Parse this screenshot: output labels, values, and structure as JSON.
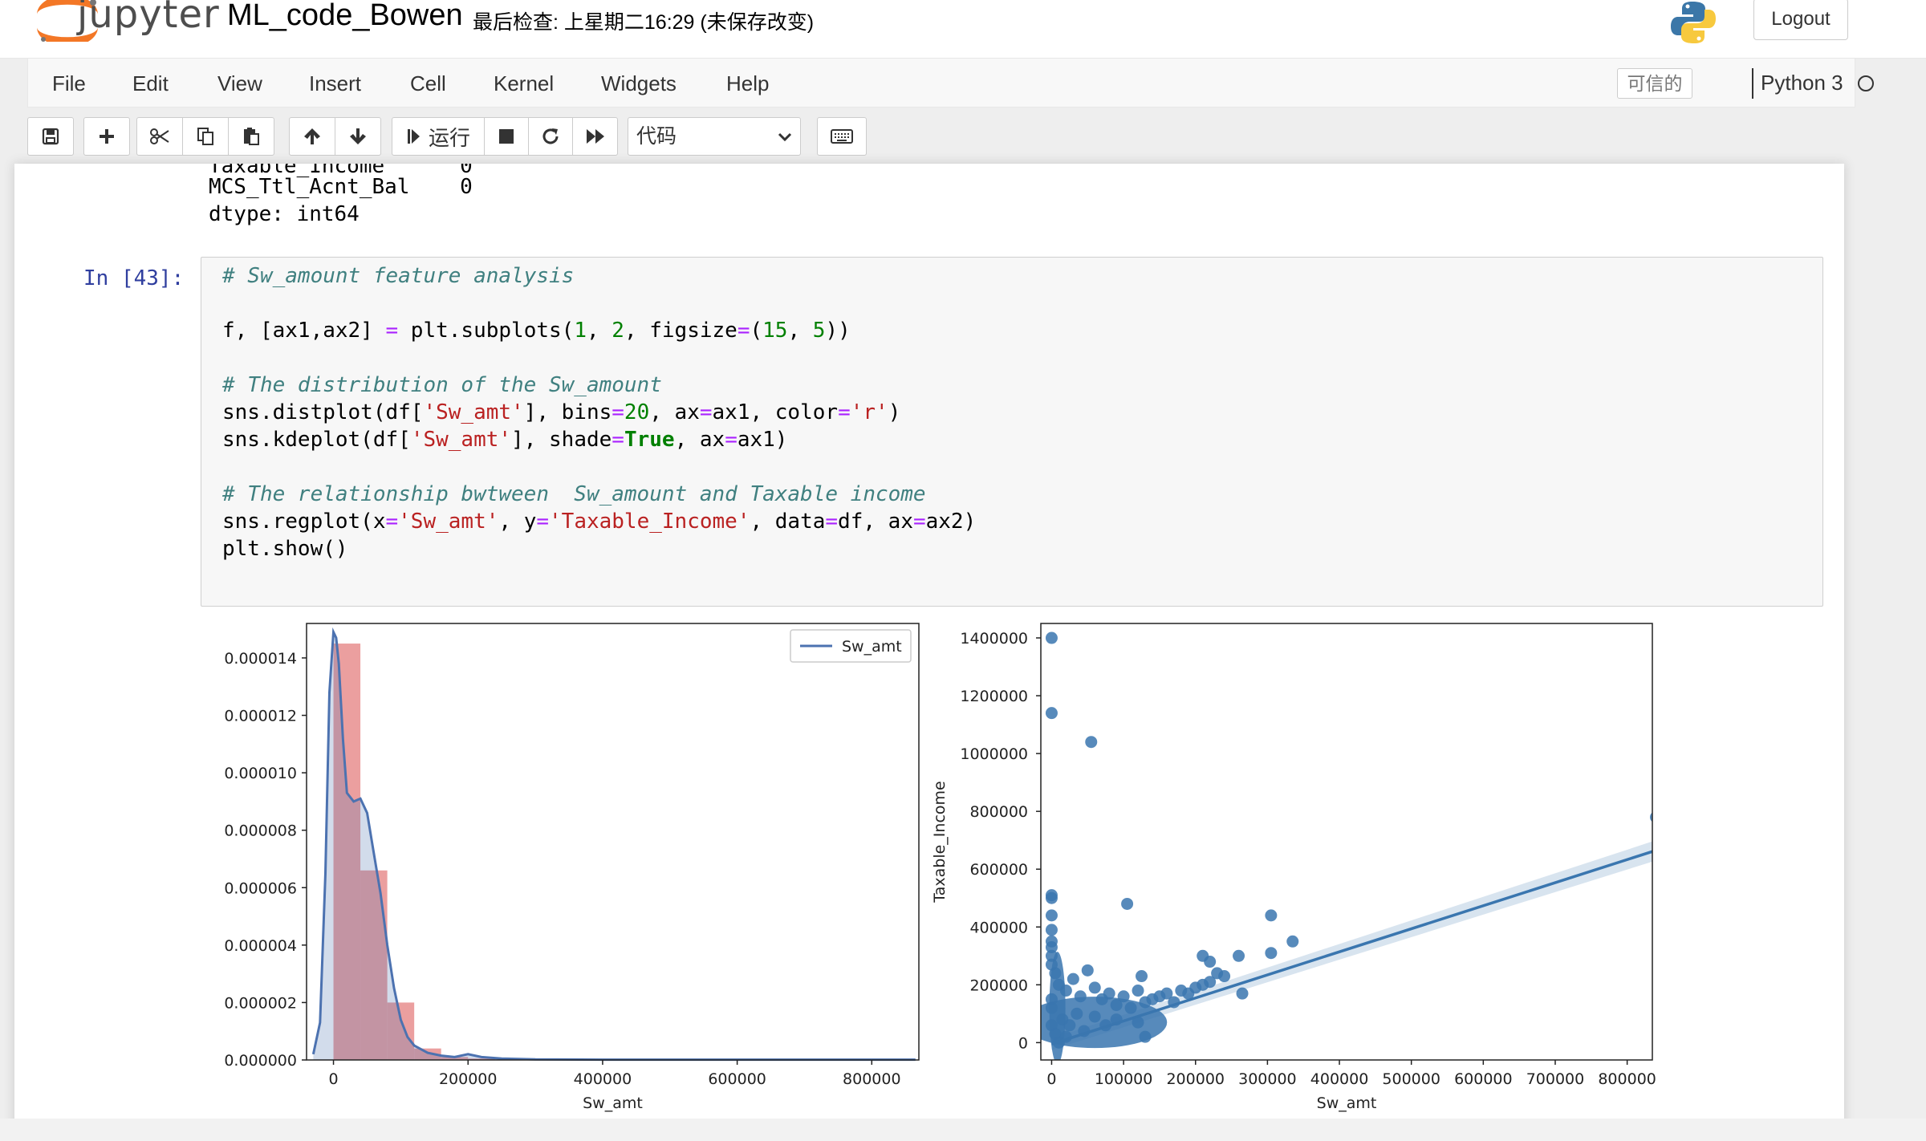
{
  "header": {
    "logo_text": "jupyter",
    "notebook_title": "ML_code_Bowen",
    "checkpoint": "最后检查: 上星期二16:29  (未保存改变)",
    "logout": "Logout"
  },
  "menu": {
    "items": [
      "File",
      "Edit",
      "View",
      "Insert",
      "Cell",
      "Kernel",
      "Widgets",
      "Help"
    ],
    "trusted": "可信的",
    "kernel_name": "Python 3"
  },
  "toolbar": {
    "run_label": "运行",
    "cell_type": "代码"
  },
  "prev_output": {
    "line1": "MCS_Ttl_Acnt_Bal    0",
    "line2": "dtype: int64"
  },
  "cell": {
    "prompt": "In [43]:",
    "code": {
      "l1": "# Sw_amount feature analysis",
      "l2": [
        "f, [ax1,ax2] ",
        "=",
        " plt.subplots(",
        "1",
        ", ",
        "2",
        ", figsize",
        "=",
        "(",
        "15",
        ", ",
        "5",
        "))"
      ],
      "l3": "# The distribution of the Sw_amount",
      "l4": [
        "sns.distplot(df[",
        "'Sw_amt'",
        "], bins",
        "=",
        "20",
        ", ax",
        "=",
        "ax1, color",
        "=",
        "'r'",
        ")"
      ],
      "l5": [
        "sns.kdeplot(df[",
        "'Sw_amt'",
        "], shade",
        "=",
        "True",
        ", ax",
        "=",
        "ax1)"
      ],
      "l6": "# The relationship bwtween  Sw_amount and Taxable income",
      "l7": [
        "sns.regplot(x",
        "=",
        "'Sw_amt'",
        ", y",
        "=",
        "'Taxable_Income'",
        ", data",
        "=",
        "df, ax",
        "=",
        "ax2)"
      ],
      "l8": "plt.show()"
    }
  },
  "chart_data": [
    {
      "type": "bar",
      "xlabel": "Sw_amt",
      "ylabel": "",
      "legend": [
        "Sw_amt"
      ],
      "legend_position": "top-right",
      "xlim": [
        -40000,
        870000
      ],
      "ylim": [
        0,
        1.52e-05
      ],
      "xticks": [
        0,
        200000,
        400000,
        600000,
        800000
      ],
      "yticks": [
        "0.000000",
        "0.000002",
        "0.000004",
        "0.000006",
        "0.000008",
        "0.000010",
        "0.000012",
        "0.000014"
      ],
      "histogram": {
        "color": "#e06c6c",
        "bins": [
          {
            "x0": 0,
            "x1": 40000,
            "density": 1.45e-05
          },
          {
            "x0": 40000,
            "x1": 80000,
            "density": 6.6e-06
          },
          {
            "x0": 80000,
            "x1": 120000,
            "density": 2e-06
          },
          {
            "x0": 120000,
            "x1": 160000,
            "density": 4e-07
          },
          {
            "x0": 160000,
            "x1": 200000,
            "density": 1e-07
          },
          {
            "x0": 200000,
            "x1": 240000,
            "density": 5e-08
          }
        ]
      },
      "kde": {
        "name": "Sw_amt",
        "color": "#4c72b0",
        "x": [
          -30000,
          -20000,
          -12000,
          -6000,
          0,
          4000,
          8000,
          14000,
          20000,
          30000,
          40000,
          50000,
          60000,
          70000,
          80000,
          90000,
          100000,
          110000,
          120000,
          140000,
          160000,
          180000,
          200000,
          220000,
          250000,
          300000,
          400000,
          600000,
          865000
        ],
        "y": [
          2e-07,
          1.3e-06,
          6.5e-06,
          1.28e-05,
          1.49e-05,
          1.47e-05,
          1.38e-05,
          1.12e-05,
          9.3e-06,
          9e-06,
          9.1e-06,
          8.6e-06,
          7.2e-06,
          5.8e-06,
          4e-06,
          2.5e-06,
          1.4e-06,
          8e-07,
          5e-07,
          2.5e-07,
          1.5e-07,
          1e-07,
          2e-07,
          1e-07,
          5e-08,
          2e-08,
          1e-08,
          1e-08,
          1e-08
        ]
      }
    },
    {
      "type": "scatter",
      "xlabel": "Sw_amt",
      "ylabel": "Taxable_Income",
      "xlim": [
        -15000,
        835000
      ],
      "ylim": [
        -60000,
        1450000
      ],
      "xticks": [
        0,
        100000,
        200000,
        300000,
        400000,
        500000,
        600000,
        700000,
        800000
      ],
      "yticks": [
        0,
        200000,
        400000,
        600000,
        800000,
        1000000,
        1200000,
        1400000
      ],
      "color": "#3a76af",
      "points": [
        [
          0,
          1400000
        ],
        [
          0,
          1140000
        ],
        [
          55000,
          1040000
        ],
        [
          0,
          510000
        ],
        [
          0,
          500000
        ],
        [
          0,
          440000
        ],
        [
          105000,
          480000
        ],
        [
          0,
          390000
        ],
        [
          0,
          350000
        ],
        [
          0,
          330000
        ],
        [
          0,
          300000
        ],
        [
          0,
          270000
        ],
        [
          5000,
          240000
        ],
        [
          10000,
          200000
        ],
        [
          20000,
          180000
        ],
        [
          30000,
          220000
        ],
        [
          40000,
          160000
        ],
        [
          50000,
          250000
        ],
        [
          60000,
          190000
        ],
        [
          70000,
          150000
        ],
        [
          80000,
          170000
        ],
        [
          90000,
          130000
        ],
        [
          100000,
          160000
        ],
        [
          110000,
          120000
        ],
        [
          120000,
          180000
        ],
        [
          125000,
          230000
        ],
        [
          130000,
          140000
        ],
        [
          140000,
          150000
        ],
        [
          150000,
          160000
        ],
        [
          160000,
          170000
        ],
        [
          170000,
          140000
        ],
        [
          180000,
          180000
        ],
        [
          190000,
          170000
        ],
        [
          200000,
          190000
        ],
        [
          210000,
          200000
        ],
        [
          220000,
          210000
        ],
        [
          230000,
          240000
        ],
        [
          210000,
          300000
        ],
        [
          220000,
          280000
        ],
        [
          240000,
          230000
        ],
        [
          260000,
          300000
        ],
        [
          265000,
          170000
        ],
        [
          305000,
          440000
        ],
        [
          305000,
          310000
        ],
        [
          335000,
          350000
        ],
        [
          840000,
          780000
        ],
        [
          15000,
          80000
        ],
        [
          25000,
          60000
        ],
        [
          35000,
          100000
        ],
        [
          45000,
          40000
        ],
        [
          60000,
          90000
        ],
        [
          75000,
          60000
        ],
        [
          90000,
          80000
        ],
        [
          120000,
          70000
        ],
        [
          130000,
          20000
        ],
        [
          0,
          60000
        ],
        [
          0,
          150000
        ],
        [
          0,
          120000
        ],
        [
          5000,
          30000
        ],
        [
          10000,
          0
        ],
        [
          20000,
          20000
        ]
      ],
      "regression": {
        "x": [
          0,
          840000
        ],
        "y": [
          -5000,
          665000
        ]
      },
      "ci_band": {
        "x": [
          0,
          840000
        ],
        "lower": [
          -25000,
          630000
        ],
        "upper": [
          15000,
          700000
        ]
      }
    }
  ]
}
